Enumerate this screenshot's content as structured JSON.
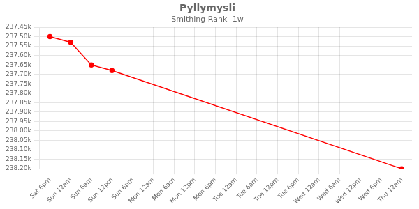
{
  "chart_data": {
    "type": "line",
    "title": "Pyllymysli",
    "subtitle": "Smithing Rank -1w",
    "x": [
      0,
      1,
      2,
      3,
      17
    ],
    "values": [
      237500,
      237530,
      237650,
      237680,
      238200
    ],
    "color": "#ff0000",
    "marker": "circle",
    "xlim": [
      -0.5,
      17.5
    ],
    "xticks": [
      {
        "value": 0,
        "label": "Sat 6pm"
      },
      {
        "value": 1,
        "label": "Sun 12am"
      },
      {
        "value": 2,
        "label": "Sun 6am"
      },
      {
        "value": 3,
        "label": "Sun 12pm"
      },
      {
        "value": 4,
        "label": "Sun 6pm"
      },
      {
        "value": 5,
        "label": "Mon 12am"
      },
      {
        "value": 6,
        "label": "Mon 6am"
      },
      {
        "value": 7,
        "label": "Mon 12pm"
      },
      {
        "value": 8,
        "label": "Mon 6pm"
      },
      {
        "value": 9,
        "label": "Tue 12am"
      },
      {
        "value": 10,
        "label": "Tue 6am"
      },
      {
        "value": 11,
        "label": "Tue 12pm"
      },
      {
        "value": 12,
        "label": "Tue 6pm"
      },
      {
        "value": 13,
        "label": "Wed 12am"
      },
      {
        "value": 14,
        "label": "Wed 6am"
      },
      {
        "value": 15,
        "label": "Wed 12pm"
      },
      {
        "value": 16,
        "label": "Wed 6pm"
      },
      {
        "value": 17,
        "label": "Thu 12am"
      }
    ],
    "ylim": [
      238200,
      237450
    ],
    "yticks": [
      {
        "value": 237450,
        "label": "237.45k"
      },
      {
        "value": 237500,
        "label": "237.50k"
      },
      {
        "value": 237550,
        "label": "237.55k"
      },
      {
        "value": 237600,
        "label": "237.60k"
      },
      {
        "value": 237650,
        "label": "237.65k"
      },
      {
        "value": 237700,
        "label": "237.70k"
      },
      {
        "value": 237750,
        "label": "237.75k"
      },
      {
        "value": 237800,
        "label": "237.80k"
      },
      {
        "value": 237850,
        "label": "237.85k"
      },
      {
        "value": 237900,
        "label": "237.90k"
      },
      {
        "value": 237950,
        "label": "237.95k"
      },
      {
        "value": 238000,
        "label": "238.00k"
      },
      {
        "value": 238050,
        "label": "238.05k"
      },
      {
        "value": 238100,
        "label": "238.10k"
      },
      {
        "value": 238150,
        "label": "238.15k"
      },
      {
        "value": 238200,
        "label": "238.20k"
      }
    ],
    "grid": true
  }
}
